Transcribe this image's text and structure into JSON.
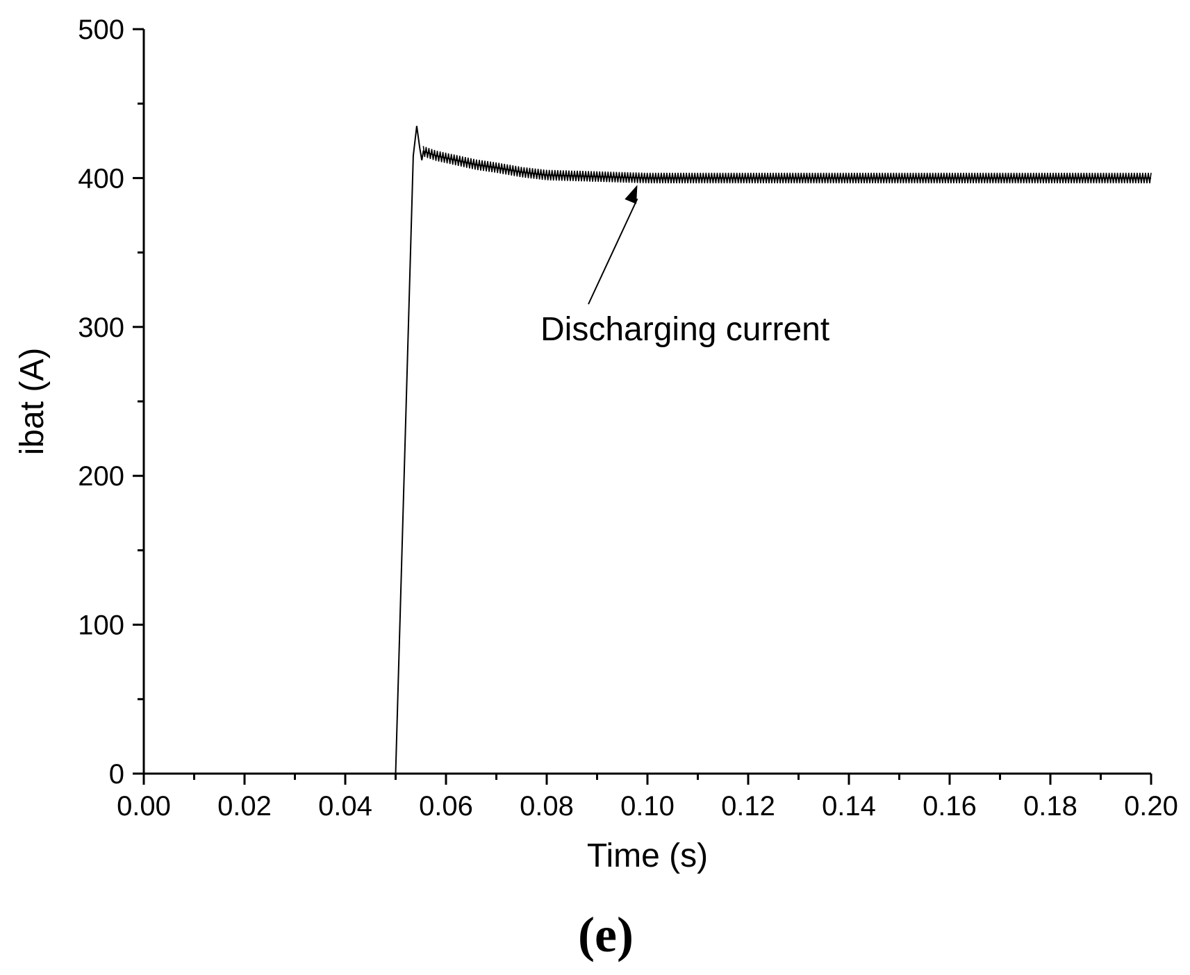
{
  "chart_data": {
    "type": "line",
    "title": "",
    "xlabel": "Time (s)",
    "ylabel": "ibat (A)",
    "xlim": [
      0.0,
      0.2
    ],
    "ylim": [
      0,
      500
    ],
    "x_ticks": [
      "0.00",
      "0.02",
      "0.04",
      "0.06",
      "0.08",
      "0.10",
      "0.12",
      "0.14",
      "0.16",
      "0.18",
      "0.20"
    ],
    "y_ticks": [
      "0",
      "100",
      "200",
      "300",
      "400",
      "500"
    ],
    "grid": false,
    "legend": "none",
    "line_color": "#000000",
    "series": [
      {
        "x": [
          0.0,
          0.05,
          0.0535,
          0.0542,
          0.0548,
          0.0552,
          0.0555,
          0.058,
          0.062,
          0.066,
          0.07,
          0.075,
          0.08,
          0.09,
          0.1,
          0.12,
          0.15,
          0.2
        ],
        "y": [
          0,
          0,
          415,
          435,
          420,
          412,
          418,
          415,
          412,
          409,
          407,
          404,
          402,
          401,
          400,
          400,
          400,
          400
        ]
      }
    ],
    "annotation": {
      "text": "Discharging current",
      "points_to": {
        "x": 0.098,
        "y": 401
      }
    },
    "panel_label": "(e)"
  }
}
